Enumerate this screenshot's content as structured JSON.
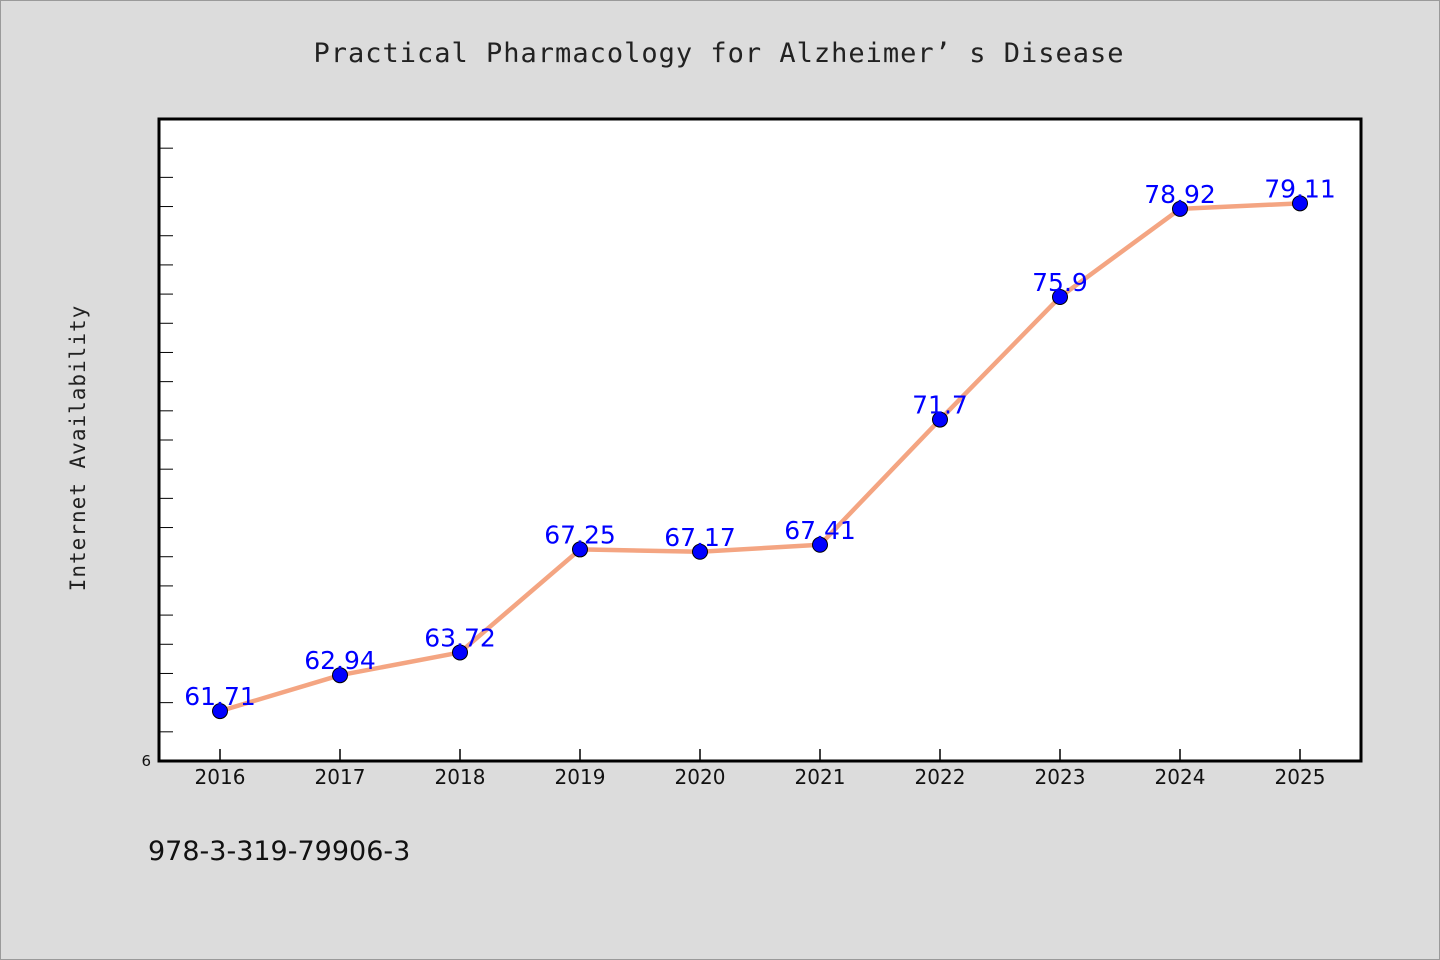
{
  "chart_data": {
    "type": "line",
    "title": "Practical Pharmacology for Alzheimer’ s Disease",
    "xlabel": "",
    "ylabel": "Internet Availability",
    "categories": [
      "2016",
      "2017",
      "2018",
      "2019",
      "2020",
      "2021",
      "2022",
      "2023",
      "2024",
      "2025"
    ],
    "series": [
      {
        "values": [
          61.71,
          62.94,
          63.72,
          67.25,
          67.17,
          67.41,
          71.7,
          75.9,
          78.92,
          79.11
        ],
        "labels": [
          "61.71",
          "62.94",
          "63.72",
          "67.25",
          "67.17",
          "67.41",
          "71.7",
          "75.9",
          "78.92",
          "79.11"
        ]
      }
    ],
    "ylim": [
      60,
      82
    ],
    "y_tick_labels": [
      "6"
    ],
    "grid": false,
    "line_color": "#f4a582",
    "marker_color": "#0000ff",
    "label_color": "#0000ff"
  },
  "footer_text": "978-3-319-79906-3"
}
